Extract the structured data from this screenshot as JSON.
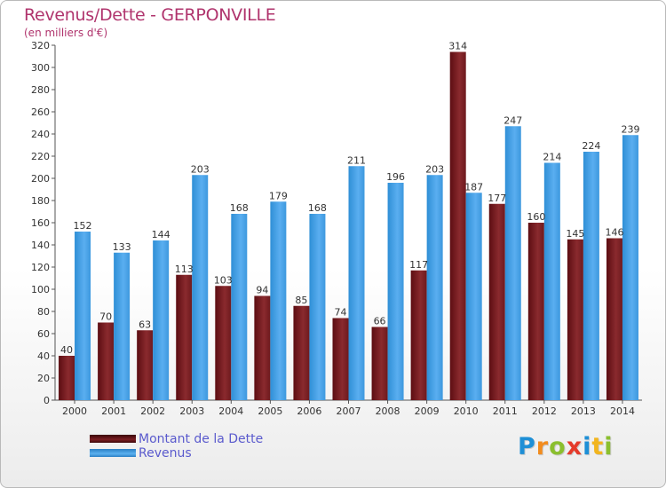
{
  "header": {
    "title": "Revenus/Dette - GERPONVILLE",
    "subtitle": "(en milliers d'€)"
  },
  "legend": {
    "items": [
      {
        "label": "Montant de la Dette",
        "color": "#7a1e22"
      },
      {
        "label": "Revenus",
        "color": "#4aa3e6"
      }
    ]
  },
  "logo": {
    "letters": [
      {
        "char": "P",
        "color": "#1e8fd6"
      },
      {
        "char": "r",
        "color": "#f28c1e"
      },
      {
        "char": "o",
        "color": "#8bbf2e"
      },
      {
        "char": "x",
        "color": "#e53a2a"
      },
      {
        "char": "i",
        "color": "#1e8fd6"
      },
      {
        "char": "t",
        "color": "#f2b51e"
      },
      {
        "char": "i",
        "color": "#8bbf2e"
      }
    ]
  },
  "chart_data": {
    "type": "bar",
    "title": "Revenus/Dette - GERPONVILLE",
    "subtitle": "(en milliers d'€)",
    "categories": [
      "2000",
      "2001",
      "2002",
      "2003",
      "2004",
      "2005",
      "2006",
      "2007",
      "2008",
      "2009",
      "2010",
      "2011",
      "2012",
      "2013",
      "2014"
    ],
    "series": [
      {
        "name": "Montant de la Dette",
        "color": "#7a1e22",
        "values": [
          40,
          70,
          63,
          113,
          103,
          94,
          85,
          74,
          66,
          117,
          314,
          177,
          160,
          145,
          146
        ]
      },
      {
        "name": "Revenus",
        "color": "#4aa3e6",
        "values": [
          152,
          133,
          144,
          203,
          168,
          179,
          168,
          211,
          196,
          203,
          187,
          247,
          214,
          224,
          239
        ]
      }
    ],
    "ylim": [
      0,
      320
    ],
    "yticks": [
      0,
      20,
      40,
      60,
      80,
      100,
      120,
      140,
      160,
      180,
      200,
      220,
      240,
      260,
      280,
      300,
      320
    ],
    "grid": false,
    "legend_position": "bottom-left"
  }
}
